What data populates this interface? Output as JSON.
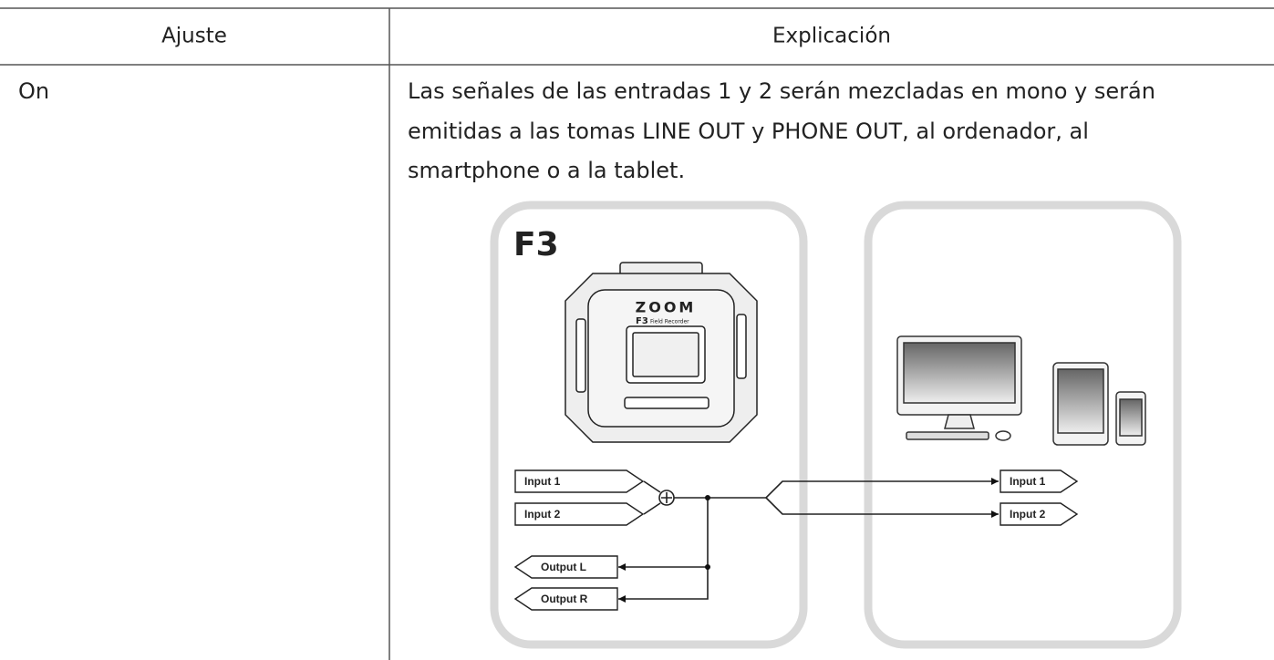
{
  "table": {
    "header": [
      "Ajuste",
      "Explicación"
    ],
    "rows": [
      {
        "setting": "On",
        "explanation": [
          "Las señales de las entradas 1 y 2 serán mezcladas en mono y serán",
          "emitidas a las tomas LINE OUT y PHONE OUT, al ordenador, al",
          "smartphone o a la tablet."
        ]
      }
    ]
  },
  "diagram": {
    "device": "F3",
    "brand": "ZOOM",
    "model": "F3",
    "model_sub": "Field Recorder",
    "device_inputs": [
      "Input 1",
      "Input 2"
    ],
    "device_outputs": [
      "Output L",
      "Output R"
    ],
    "computer_inputs": [
      "Input 1",
      "Input 2"
    ]
  }
}
